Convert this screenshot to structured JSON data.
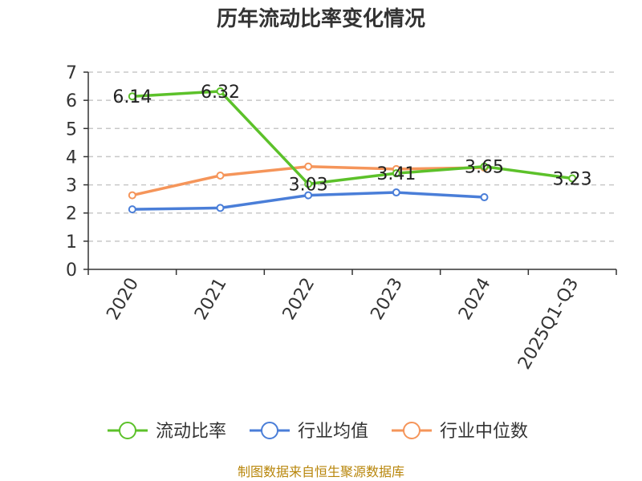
{
  "chart_data": {
    "type": "line",
    "title": "历年流动比率变化情况",
    "categories": [
      "2020",
      "2021",
      "2022",
      "2023",
      "2024",
      "2025Q1-Q3"
    ],
    "ylim": [
      0,
      7
    ],
    "yticks": [
      0,
      1,
      2,
      3,
      4,
      5,
      6,
      7
    ],
    "grid": true,
    "legend_position": "bottom",
    "series": [
      {
        "name": "流动比率",
        "color": "#5cc12a",
        "values": [
          6.14,
          6.32,
          3.03,
          3.41,
          3.65,
          3.23
        ],
        "labels": [
          "6.14",
          "6.32",
          "3.03",
          "3.41",
          "3.65",
          "3.23"
        ]
      },
      {
        "name": "行业均值",
        "color": "#4a7ed8",
        "values": [
          2.13,
          2.18,
          2.63,
          2.73,
          2.56,
          null
        ]
      },
      {
        "name": "行业中位数",
        "color": "#f5955a",
        "values": [
          2.63,
          3.33,
          3.65,
          3.56,
          3.61,
          null
        ]
      }
    ]
  },
  "source": "制图数据来自恒生聚源数据库"
}
